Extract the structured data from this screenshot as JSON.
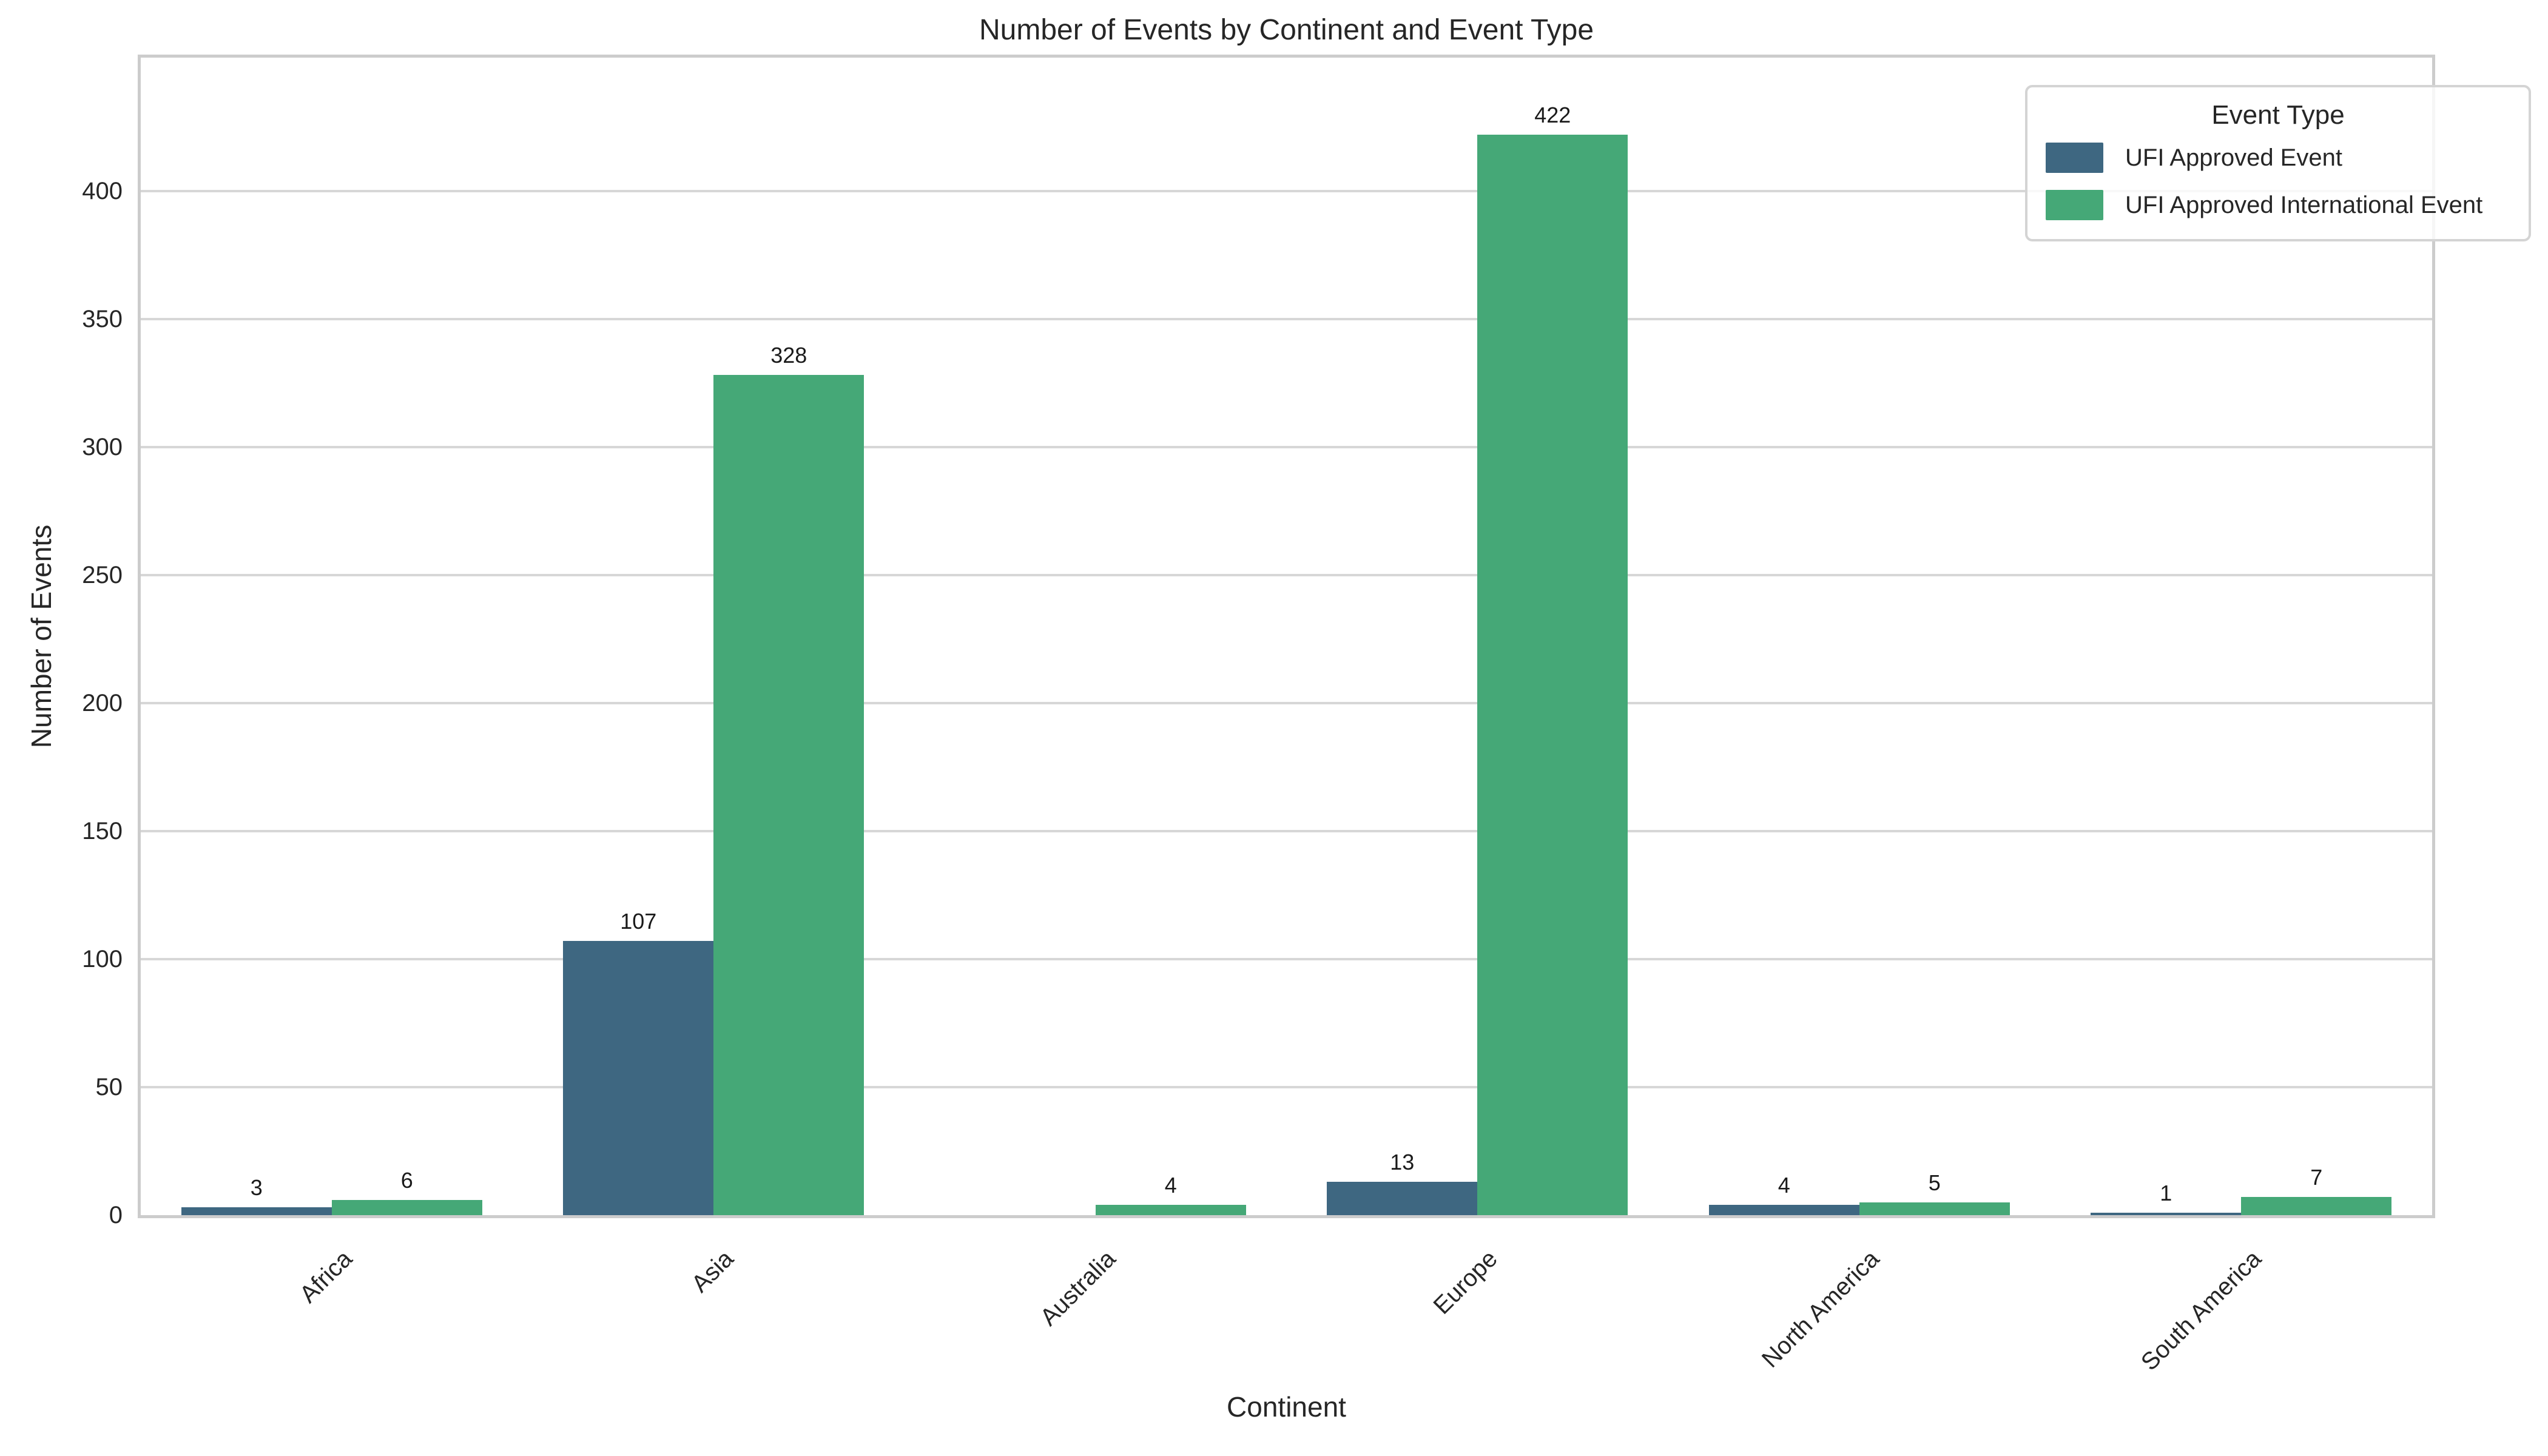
{
  "chart": {
    "title": "Number of Events by Continent and Event Type",
    "xlabel": "Continent",
    "ylabel": "Number of Events",
    "legend_title": "Event Type"
  },
  "chart_data": {
    "type": "bar",
    "title": "Number of Events by Continent and Event Type",
    "xlabel": "Continent",
    "ylabel": "Number of Events",
    "legend_title": "Event Type",
    "legend_position": "upper right",
    "grid": true,
    "bar_labels": true,
    "categories": [
      "Africa",
      "Asia",
      "Australia",
      "Europe",
      "North America",
      "South America"
    ],
    "series": [
      {
        "name": "UFI Approved Event",
        "color": "#3e6781",
        "values": [
          3,
          107,
          0,
          13,
          4,
          1
        ]
      },
      {
        "name": "UFI Approved International Event",
        "color": "#45a877",
        "values": [
          6,
          328,
          4,
          422,
          5,
          7
        ]
      }
    ],
    "ylim": [
      0,
      452
    ],
    "yticks": [
      0,
      50,
      100,
      150,
      200,
      250,
      300,
      350,
      400
    ],
    "colors": {
      "grid": "#d7d7d7",
      "spine": "#cccccc",
      "text": "#262626",
      "background": "#ffffff"
    }
  }
}
